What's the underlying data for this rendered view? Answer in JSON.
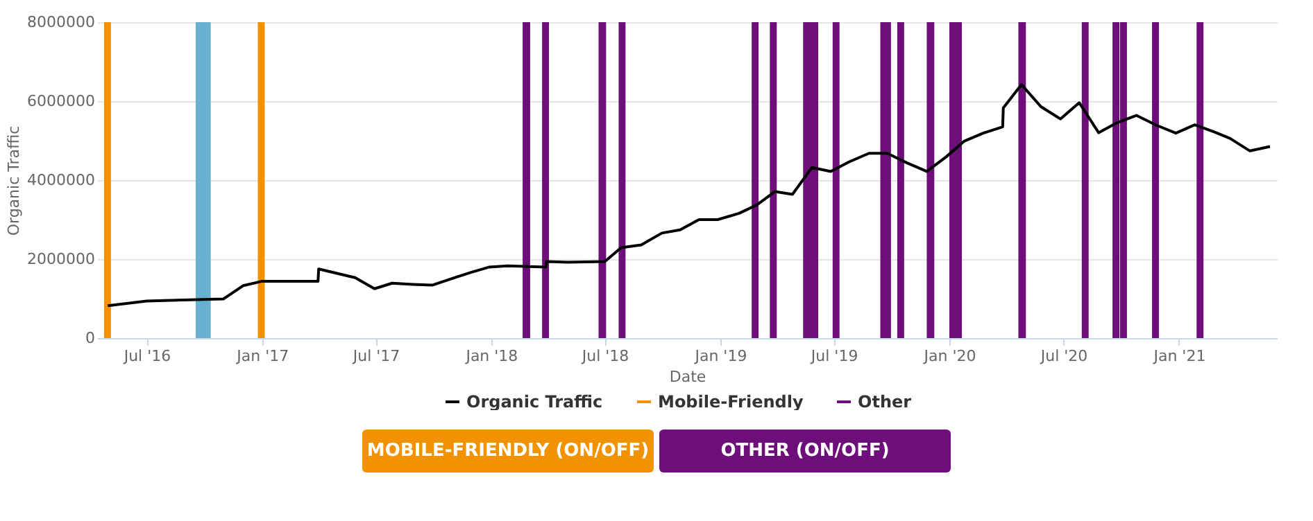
{
  "chart_data": {
    "type": "line",
    "xlabel": "Date",
    "ylabel": "Organic Traffic",
    "xlim": [
      "2016-04-13",
      "2021-06-06"
    ],
    "xticks": [
      {
        "value": "2016-07-01",
        "label": "Jul '16"
      },
      {
        "value": "2017-01-01",
        "label": "Jan '17"
      },
      {
        "value": "2017-07-01",
        "label": "Jul '17"
      },
      {
        "value": "2018-01-01",
        "label": "Jan '18"
      },
      {
        "value": "2018-07-01",
        "label": "Jul '18"
      },
      {
        "value": "2019-01-01",
        "label": "Jan '19"
      },
      {
        "value": "2019-07-01",
        "label": "Jul '19"
      },
      {
        "value": "2020-01-01",
        "label": "Jan '20"
      },
      {
        "value": "2020-07-01",
        "label": "Jul '20"
      },
      {
        "value": "2021-01-01",
        "label": "Jan '21"
      }
    ],
    "ylim": [
      0,
      8000000
    ],
    "yticks": [
      0,
      2000000,
      4000000,
      6000000,
      8000000
    ],
    "grid": "y",
    "legend": "bottom",
    "line_style": "solid",
    "series": [
      {
        "name": "Organic Traffic",
        "color": "#000000",
        "x": [
          "2016-04-30",
          "2016-07-01",
          "2016-10-31",
          "2016-12-02",
          "2017-01-01",
          "2017-03-31",
          "2017-04-01",
          "2017-05-29",
          "2017-06-29",
          "2017-07-27",
          "2017-08-29",
          "2017-09-29",
          "2017-10-31",
          "2017-11-29",
          "2017-12-29",
          "2018-01-27",
          "2018-03-29",
          "2018-03-30",
          "2018-05-03",
          "2018-07-01",
          "2018-07-27",
          "2018-08-28",
          "2018-09-30",
          "2018-10-29",
          "2018-11-28",
          "2018-12-28",
          "2019-01-31",
          "2019-02-28",
          "2019-03-29",
          "2019-04-26",
          "2019-05-27",
          "2019-06-26",
          "2019-07-25",
          "2019-08-26",
          "2019-09-24",
          "2019-10-25",
          "2019-11-26",
          "2019-12-27",
          "2020-01-25",
          "2020-02-24",
          "2020-03-26",
          "2020-03-27",
          "2020-04-25",
          "2020-05-26",
          "2020-06-26",
          "2020-07-26",
          "2020-08-26",
          "2020-09-25",
          "2020-10-25",
          "2020-11-26",
          "2020-12-27",
          "2021-01-26",
          "2021-02-26",
          "2021-03-23",
          "2021-04-24",
          "2021-05-26"
        ],
        "values": [
          820000,
          940000,
          990000,
          1330000,
          1440000,
          1440000,
          1750000,
          1530000,
          1250000,
          1390000,
          1360000,
          1340000,
          1510000,
          1660000,
          1800000,
          1830000,
          1800000,
          1940000,
          1920000,
          1940000,
          2290000,
          2360000,
          2660000,
          2740000,
          3000000,
          3000000,
          3160000,
          3370000,
          3710000,
          3640000,
          4320000,
          4220000,
          4460000,
          4680000,
          4680000,
          4440000,
          4220000,
          4590000,
          4990000,
          5190000,
          5350000,
          5830000,
          6420000,
          5860000,
          5550000,
          5960000,
          5200000,
          5460000,
          5640000,
          5390000,
          5190000,
          5400000,
          5220000,
          5060000,
          4740000,
          4850000
        ]
      }
    ],
    "bands": [
      {
        "axis": "x",
        "from": "2016-04-24",
        "to": "2016-05-05",
        "label": "Mobile-Friendly",
        "color": "#f39200"
      },
      {
        "axis": "x",
        "from": "2016-09-17",
        "to": "2016-10-11",
        "color": "#67b0cf"
      },
      {
        "axis": "x",
        "from": "2016-12-25",
        "to": "2017-01-05",
        "color": "#f39200"
      },
      {
        "axis": "x",
        "from": "2018-02-20",
        "to": "2018-03-04",
        "label": "Other",
        "color": "#6e0e7a"
      },
      {
        "axis": "x",
        "from": "2018-03-23",
        "to": "2018-04-03",
        "color": "#6e0e7a"
      },
      {
        "axis": "x",
        "from": "2018-06-21",
        "to": "2018-07-03",
        "color": "#6e0e7a"
      },
      {
        "axis": "x",
        "from": "2018-07-23",
        "to": "2018-08-03",
        "color": "#6e0e7a"
      },
      {
        "axis": "x",
        "from": "2019-02-20",
        "to": "2019-03-03",
        "color": "#6e0e7a"
      },
      {
        "axis": "x",
        "from": "2019-03-21",
        "to": "2019-04-01",
        "color": "#6e0e7a"
      },
      {
        "axis": "x",
        "from": "2019-05-13",
        "to": "2019-06-06",
        "color": "#6e0e7a"
      },
      {
        "axis": "x",
        "from": "2019-06-29",
        "to": "2019-07-10",
        "color": "#6e0e7a"
      },
      {
        "axis": "x",
        "from": "2019-09-13",
        "to": "2019-09-30",
        "color": "#6e0e7a"
      },
      {
        "axis": "x",
        "from": "2019-10-10",
        "to": "2019-10-21",
        "color": "#6e0e7a"
      },
      {
        "axis": "x",
        "from": "2019-11-26",
        "to": "2019-12-08",
        "color": "#6e0e7a"
      },
      {
        "axis": "x",
        "from": "2020-01-01",
        "to": "2020-01-21",
        "color": "#6e0e7a"
      },
      {
        "axis": "x",
        "from": "2020-04-20",
        "to": "2020-05-02",
        "color": "#6e0e7a"
      },
      {
        "axis": "x",
        "from": "2020-07-30",
        "to": "2020-08-10",
        "color": "#6e0e7a"
      },
      {
        "axis": "x",
        "from": "2020-09-17",
        "to": "2020-09-28",
        "color": "#6e0e7a"
      },
      {
        "axis": "x",
        "from": "2020-09-29",
        "to": "2020-10-10",
        "color": "#6e0e7a"
      },
      {
        "axis": "x",
        "from": "2020-11-19",
        "to": "2020-11-30",
        "color": "#6e0e7a"
      },
      {
        "axis": "x",
        "from": "2021-01-29",
        "to": "2021-02-09",
        "color": "#6e0e7a"
      }
    ],
    "annotations": [
      "MOBILE-FRIENDLY (ON/OFF)",
      "OTHER (ON/OFF)"
    ]
  }
}
